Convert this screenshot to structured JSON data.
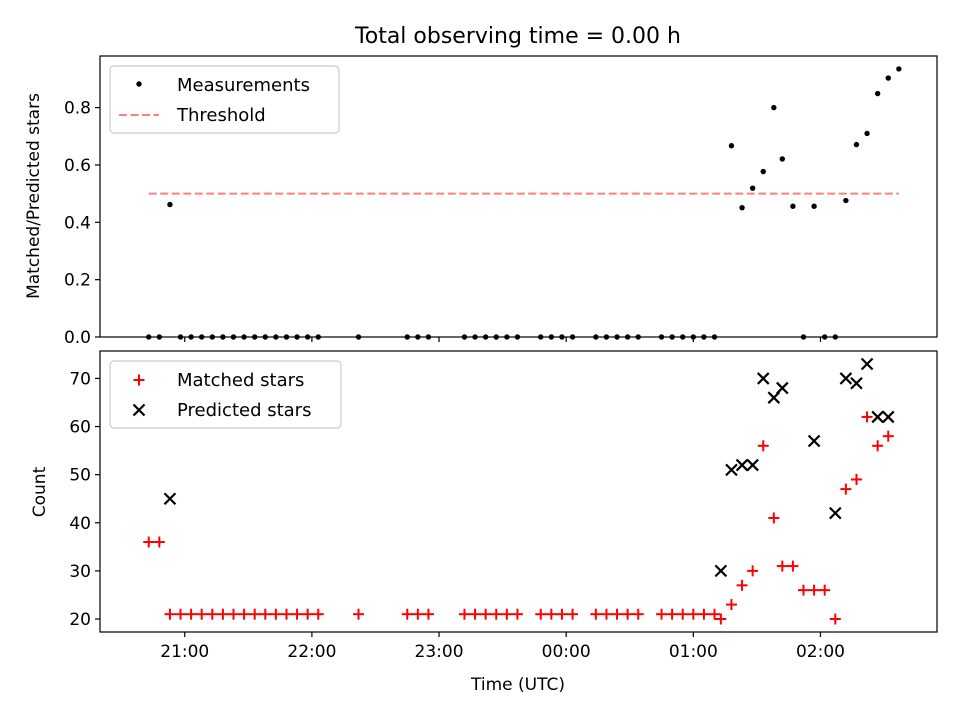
{
  "chart_data": [
    {
      "type": "scatter",
      "title": "Total observing time = 0.00 h",
      "xlabel": "",
      "ylabel": "Matched/Predicted stars",
      "x_axis_type": "time",
      "xlim": [
        "20:20",
        "02:55"
      ],
      "ylim": [
        0,
        0.98
      ],
      "yticks": [
        0.0,
        0.2,
        0.4,
        0.6,
        0.8
      ],
      "ytick_labels": [
        "0.0",
        "0.2",
        "0.4",
        "0.6",
        "0.8"
      ],
      "grid": false,
      "legend": "upper-left",
      "series": [
        {
          "name": "Measurements",
          "marker": "dot",
          "color": "#000000",
          "points": [
            [
              "20:43",
              0
            ],
            [
              "20:48",
              0
            ],
            [
              "20:53",
              0.462
            ],
            [
              "20:58",
              0
            ],
            [
              "21:03",
              0
            ],
            [
              "21:08",
              0
            ],
            [
              "21:13",
              0
            ],
            [
              "21:18",
              0
            ],
            [
              "21:23",
              0
            ],
            [
              "21:28",
              0
            ],
            [
              "21:33",
              0
            ],
            [
              "21:38",
              0
            ],
            [
              "21:43",
              0
            ],
            [
              "21:48",
              0
            ],
            [
              "21:53",
              0
            ],
            [
              "21:58",
              0
            ],
            [
              "22:03",
              0
            ],
            [
              "22:22",
              0
            ],
            [
              "22:45",
              0
            ],
            [
              "22:50",
              0
            ],
            [
              "22:55",
              0
            ],
            [
              "23:12",
              0
            ],
            [
              "23:17",
              0
            ],
            [
              "23:22",
              0
            ],
            [
              "23:27",
              0
            ],
            [
              "23:32",
              0
            ],
            [
              "23:37",
              0
            ],
            [
              "23:48",
              0
            ],
            [
              "23:53",
              0
            ],
            [
              "23:58",
              0
            ],
            [
              "00:03",
              0
            ],
            [
              "00:14",
              0
            ],
            [
              "00:19",
              0
            ],
            [
              "00:24",
              0
            ],
            [
              "00:29",
              0
            ],
            [
              "00:34",
              0
            ],
            [
              "00:45",
              0
            ],
            [
              "00:50",
              0
            ],
            [
              "00:55",
              0
            ],
            [
              "01:00",
              0
            ],
            [
              "01:05",
              0
            ],
            [
              "01:10",
              0
            ],
            [
              "01:18",
              0.667
            ],
            [
              "01:23",
              0.451
            ],
            [
              "01:28",
              0.519
            ],
            [
              "01:33",
              0.577
            ],
            [
              "01:38",
              0.8
            ],
            [
              "01:42",
              0.621
            ],
            [
              "01:47",
              0.456
            ],
            [
              "01:52",
              0
            ],
            [
              "01:57",
              0.456
            ],
            [
              "02:02",
              0
            ],
            [
              "02:07",
              0
            ],
            [
              "02:12",
              0.476
            ],
            [
              "02:17",
              0.671
            ],
            [
              "02:22",
              0.71
            ],
            [
              "02:27",
              0.849
            ],
            [
              "02:32",
              0.903
            ],
            [
              "02:37",
              0.935
            ]
          ]
        },
        {
          "name": "Threshold",
          "type": "line",
          "style": "dashed",
          "color": "#ff7f7f",
          "x": [
            "20:43",
            "02:37"
          ],
          "values": [
            0.5,
            0.5
          ]
        }
      ]
    },
    {
      "type": "scatter",
      "title": "",
      "xlabel": "Time (UTC)",
      "ylabel": "Count",
      "x_axis_type": "time",
      "xlim": [
        "20:20",
        "02:55"
      ],
      "ylim": [
        17.3,
        75.7
      ],
      "yticks": [
        20,
        30,
        40,
        50,
        60,
        70
      ],
      "ytick_labels": [
        "20",
        "30",
        "40",
        "50",
        "60",
        "70"
      ],
      "xticks": [
        "21:00",
        "22:00",
        "23:00",
        "00:00",
        "01:00",
        "02:00"
      ],
      "xtick_labels": [
        "21:00",
        "22:00",
        "23:00",
        "00:00",
        "01:00",
        "02:00"
      ],
      "grid": false,
      "legend": "upper-left",
      "series": [
        {
          "name": "Matched stars",
          "marker": "plus",
          "color": "#ff0000",
          "points": [
            [
              "20:43",
              36
            ],
            [
              "20:48",
              36
            ],
            [
              "20:53",
              21
            ],
            [
              "20:58",
              21
            ],
            [
              "21:03",
              21
            ],
            [
              "21:08",
              21
            ],
            [
              "21:13",
              21
            ],
            [
              "21:18",
              21
            ],
            [
              "21:23",
              21
            ],
            [
              "21:28",
              21
            ],
            [
              "21:33",
              21
            ],
            [
              "21:38",
              21
            ],
            [
              "21:43",
              21
            ],
            [
              "21:48",
              21
            ],
            [
              "21:53",
              21
            ],
            [
              "21:58",
              21
            ],
            [
              "22:03",
              21
            ],
            [
              "22:22",
              21
            ],
            [
              "22:45",
              21
            ],
            [
              "22:50",
              21
            ],
            [
              "22:55",
              21
            ],
            [
              "23:12",
              21
            ],
            [
              "23:17",
              21
            ],
            [
              "23:22",
              21
            ],
            [
              "23:27",
              21
            ],
            [
              "23:32",
              21
            ],
            [
              "23:37",
              21
            ],
            [
              "23:48",
              21
            ],
            [
              "23:53",
              21
            ],
            [
              "23:58",
              21
            ],
            [
              "00:03",
              21
            ],
            [
              "00:14",
              21
            ],
            [
              "00:19",
              21
            ],
            [
              "00:24",
              21
            ],
            [
              "00:29",
              21
            ],
            [
              "00:34",
              21
            ],
            [
              "00:45",
              21
            ],
            [
              "00:50",
              21
            ],
            [
              "00:55",
              21
            ],
            [
              "01:00",
              21
            ],
            [
              "01:05",
              21
            ],
            [
              "01:10",
              21
            ],
            [
              "01:13",
              20
            ],
            [
              "01:18",
              23
            ],
            [
              "01:23",
              27
            ],
            [
              "01:28",
              30
            ],
            [
              "01:33",
              56
            ],
            [
              "01:38",
              41
            ],
            [
              "01:42",
              31
            ],
            [
              "01:47",
              31
            ],
            [
              "01:52",
              26
            ],
            [
              "01:57",
              26
            ],
            [
              "02:02",
              26
            ],
            [
              "02:07",
              20
            ],
            [
              "02:12",
              47
            ],
            [
              "02:17",
              49
            ],
            [
              "02:22",
              62
            ],
            [
              "02:27",
              56
            ],
            [
              "02:32",
              58
            ]
          ]
        },
        {
          "name": "Predicted stars",
          "marker": "x",
          "color": "#000000",
          "points": [
            [
              "20:53",
              45
            ],
            [
              "01:13",
              30
            ],
            [
              "01:18",
              51
            ],
            [
              "01:23",
              52
            ],
            [
              "01:28",
              52
            ],
            [
              "01:33",
              70
            ],
            [
              "01:38",
              66
            ],
            [
              "01:42",
              68
            ],
            [
              "01:57",
              57
            ],
            [
              "02:07",
              42
            ],
            [
              "02:12",
              70
            ],
            [
              "02:17",
              69
            ],
            [
              "02:22",
              73
            ],
            [
              "02:27",
              62
            ],
            [
              "02:32",
              62
            ]
          ]
        }
      ]
    }
  ]
}
